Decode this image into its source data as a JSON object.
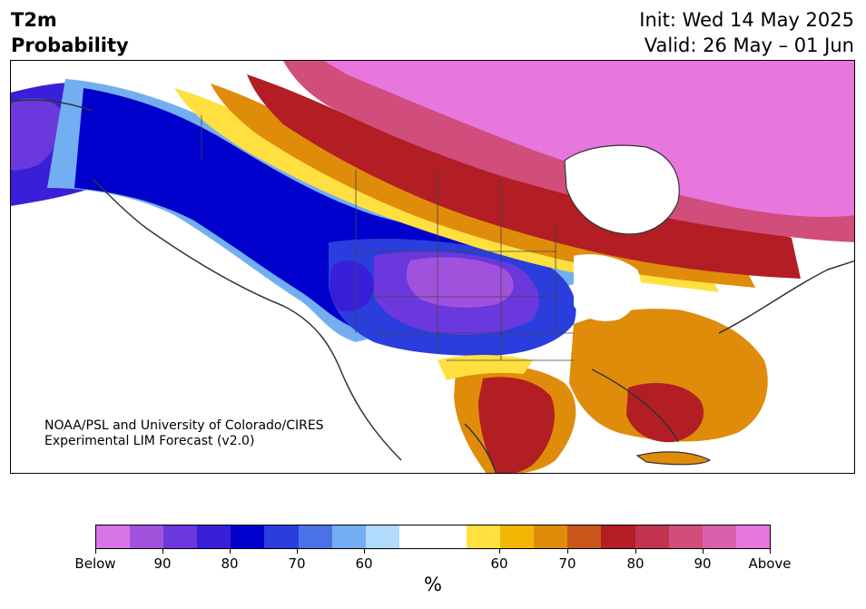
{
  "title": {
    "variable": "T2m",
    "product": "Probability",
    "init": "Init: Wed 14 May 2025",
    "valid": "Valid: 26 May – 01 Jun"
  },
  "credit": {
    "line1": "NOAA/PSL and University of Colorado/CIRES",
    "line2": "Experimental LIM Forecast (v2.0)"
  },
  "colorbar": {
    "colors": [
      "#d873e8",
      "#a052dd",
      "#6a38dc",
      "#3a1fd8",
      "#0000cd",
      "#2a3ddd",
      "#4a72e8",
      "#74aef2",
      "#b0dbfc",
      "#ffffff",
      "#ffe040",
      "#f2b705",
      "#df8c0b",
      "#c8561a",
      "#b21e23",
      "#c23350",
      "#d04d7c",
      "#d960aa",
      "#e777dc"
    ],
    "labels": [
      "Below",
      "90",
      "80",
      "70",
      "60",
      "60",
      "70",
      "80",
      "90",
      "Above"
    ],
    "units": "%"
  },
  "legend_colors": {
    "below_strong": "#6a38dc",
    "below": "#0000cd",
    "neutral": "#ffffff",
    "above": "#df8c0b",
    "above_strong": "#e777dc"
  }
}
